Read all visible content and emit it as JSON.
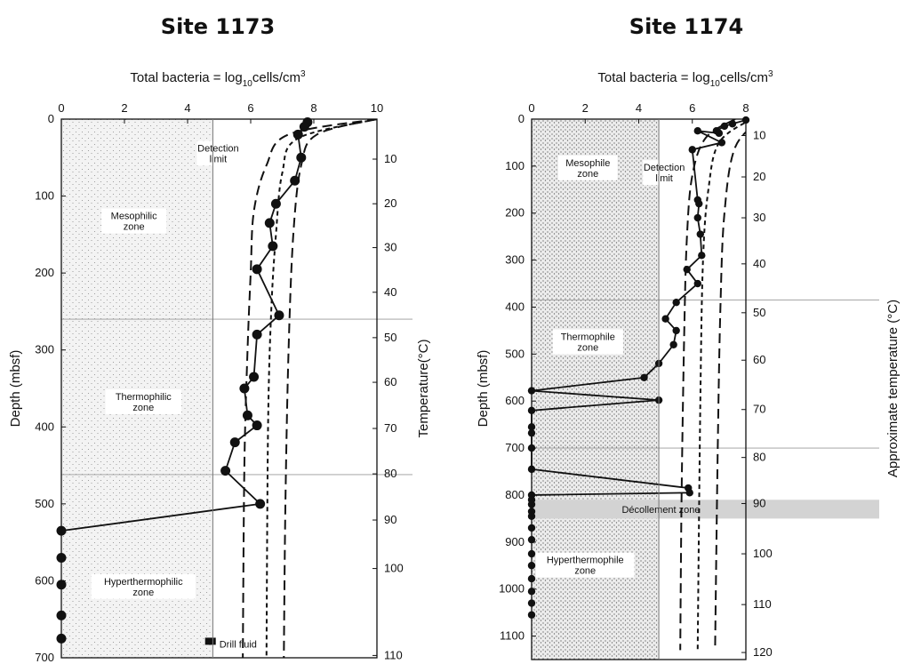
{
  "chart_data": [
    {
      "type": "scatter",
      "title": "Site 1173",
      "xlabel_parts": [
        "Total bacteria = log",
        "10",
        "cells/cm",
        "3"
      ],
      "ylabel": "Depth (mbsf)",
      "y2label": "Temperature(°C)",
      "xlim": [
        0,
        10
      ],
      "ylim": [
        0,
        700
      ],
      "x_ticks": [
        0,
        2,
        4,
        6,
        8,
        10
      ],
      "y_ticks": [
        0,
        100,
        200,
        300,
        400,
        500,
        600,
        700
      ],
      "temp_ticks": [
        {
          "label": "10",
          "depth": 52
        },
        {
          "label": "20",
          "depth": 110
        },
        {
          "label": "30",
          "depth": 167
        },
        {
          "label": "40",
          "depth": 225
        },
        {
          "label": "50",
          "depth": 284
        },
        {
          "label": "60",
          "depth": 342
        },
        {
          "label": "70",
          "depth": 402
        },
        {
          "label": "80",
          "depth": 461
        },
        {
          "label": "90",
          "depth": 521
        },
        {
          "label": "100",
          "depth": 584
        },
        {
          "label": "110",
          "depth": 697
        }
      ],
      "detection_limit": 4.8,
      "zone_boundaries": [
        260,
        462
      ],
      "zones": [
        {
          "name": "Mesophilic",
          "sub": "zone",
          "x": 2.3,
          "depth": 130
        },
        {
          "name": "Thermophilic",
          "sub": "zone",
          "x": 2.6,
          "depth": 365
        },
        {
          "name": "Hyperthermophilic",
          "sub": "zone",
          "x": 2.6,
          "depth": 605
        }
      ],
      "detection_label": {
        "line1": "Detection",
        "line2": "limit",
        "x": 4.8,
        "depth": 42
      },
      "bacteria": [
        {
          "x": 7.8,
          "y": 4
        },
        {
          "x": 7.7,
          "y": 10
        },
        {
          "x": 7.5,
          "y": 20
        },
        {
          "x": 7.6,
          "y": 50
        },
        {
          "x": 7.4,
          "y": 80
        },
        {
          "x": 6.8,
          "y": 110
        },
        {
          "x": 6.6,
          "y": 135
        },
        {
          "x": 6.7,
          "y": 165
        },
        {
          "x": 6.2,
          "y": 195
        },
        {
          "x": 6.9,
          "y": 255
        },
        {
          "x": 6.2,
          "y": 280
        },
        {
          "x": 6.1,
          "y": 335
        },
        {
          "x": 5.8,
          "y": 350
        },
        {
          "x": 5.9,
          "y": 385
        },
        {
          "x": 6.2,
          "y": 398
        },
        {
          "x": 5.5,
          "y": 420
        },
        {
          "x": 5.2,
          "y": 457
        },
        {
          "x": 6.3,
          "y": 500
        },
        {
          "x": 0.0,
          "y": 535
        }
      ],
      "zero_points": [
        570,
        605,
        645,
        675
      ],
      "model_curves": [
        {
          "dash": "11 6",
          "points": [
            [
              10,
              0
            ],
            [
              7.2,
              20
            ],
            [
              6.5,
              60
            ],
            [
              6.1,
              120
            ],
            [
              6.0,
              200
            ],
            [
              5.9,
              300
            ],
            [
              5.8,
              450
            ],
            [
              5.75,
              700
            ]
          ]
        },
        {
          "dash": "5 4",
          "points": [
            [
              10,
              0
            ],
            [
              7.5,
              25
            ],
            [
              7.0,
              70
            ],
            [
              6.8,
              150
            ],
            [
              6.65,
              250
            ],
            [
              6.55,
              400
            ],
            [
              6.5,
              700
            ]
          ]
        },
        {
          "dash": "11 6",
          "points": [
            [
              10,
              0
            ],
            [
              8.1,
              20
            ],
            [
              7.6,
              60
            ],
            [
              7.35,
              150
            ],
            [
              7.2,
              300
            ],
            [
              7.1,
              500
            ],
            [
              7.05,
              700
            ]
          ]
        }
      ],
      "drill_fluid": {
        "label": "Drill fluid",
        "x": 4.95,
        "depth": 682
      }
    },
    {
      "type": "scatter",
      "title": "Site 1174",
      "xlabel_parts": [
        "Total bacteria = log",
        "10",
        "cells/cm",
        "3"
      ],
      "ylabel": "Depth (mbsf)",
      "y2label": "Approximate temperature (°C)",
      "xlim": [
        0,
        8
      ],
      "ylim": [
        0,
        1150
      ],
      "x_ticks": [
        0,
        2,
        4,
        6,
        8
      ],
      "y_ticks": [
        0,
        100,
        200,
        300,
        400,
        500,
        600,
        700,
        800,
        900,
        1000,
        1100
      ],
      "temp_ticks": [
        {
          "label": "10",
          "depth": 35
        },
        {
          "label": "20",
          "depth": 123
        },
        {
          "label": "30",
          "depth": 210
        },
        {
          "label": "40",
          "depth": 308
        },
        {
          "label": "50",
          "depth": 412
        },
        {
          "label": "60",
          "depth": 513
        },
        {
          "label": "70",
          "depth": 618
        },
        {
          "label": "80",
          "depth": 720
        },
        {
          "label": "90",
          "depth": 818
        },
        {
          "label": "100",
          "depth": 925
        },
        {
          "label": "110",
          "depth": 1033
        },
        {
          "label": "120",
          "depth": 1135
        }
      ],
      "detection_limit": 4.75,
      "zone_boundaries": [
        385,
        700
      ],
      "decollement": {
        "label": "Décollement zone",
        "from": 810,
        "to": 850
      },
      "zones": [
        {
          "name": "Mesophile",
          "sub": "zone",
          "x": 2.1,
          "depth": 100
        },
        {
          "name": "Thermophile",
          "sub": "zone",
          "x": 2.1,
          "depth": 470
        },
        {
          "name": "Hyperthermophile",
          "sub": "zone",
          "x": 2.0,
          "depth": 945
        }
      ],
      "detection_label": {
        "line1": "Detection",
        "line2": "limit",
        "x": 4.75,
        "depth": 110
      },
      "bacteria": [
        {
          "x": 8.0,
          "y": 2
        },
        {
          "x": 7.5,
          "y": 10
        },
        {
          "x": 7.2,
          "y": 15
        },
        {
          "x": 6.9,
          "y": 25
        },
        {
          "x": 7.0,
          "y": 30
        },
        {
          "x": 6.2,
          "y": 25
        },
        {
          "x": 7.1,
          "y": 50
        },
        {
          "x": 6.0,
          "y": 65
        },
        {
          "x": 6.2,
          "y": 172
        },
        {
          "x": 6.25,
          "y": 180
        },
        {
          "x": 6.2,
          "y": 210
        },
        {
          "x": 6.3,
          "y": 245
        },
        {
          "x": 6.35,
          "y": 290
        },
        {
          "x": 5.8,
          "y": 320
        },
        {
          "x": 6.2,
          "y": 350
        },
        {
          "x": 5.4,
          "y": 390
        },
        {
          "x": 5.0,
          "y": 425
        },
        {
          "x": 5.4,
          "y": 450
        },
        {
          "x": 5.3,
          "y": 480
        },
        {
          "x": 4.75,
          "y": 520
        },
        {
          "x": 4.2,
          "y": 550
        },
        {
          "x": 0.0,
          "y": 578
        },
        {
          "x": 4.75,
          "y": 598
        },
        {
          "x": 0.0,
          "y": 620
        },
        {
          "x": 0.0,
          "y": 655
        },
        {
          "x": 0.0,
          "y": 668
        },
        {
          "x": 0.0,
          "y": 700
        },
        {
          "x": 0.0,
          "y": 745
        },
        {
          "x": 5.85,
          "y": 785
        },
        {
          "x": 5.9,
          "y": 795
        },
        {
          "x": 0.0,
          "y": 800
        }
      ],
      "zero_points": [
        810,
        820,
        835,
        845,
        870,
        895,
        925,
        950,
        978,
        1005,
        1030,
        1055
      ],
      "model_curves": [
        {
          "dash": "11 6",
          "points": [
            [
              7.6,
              0
            ],
            [
              6.5,
              40
            ],
            [
              6.0,
              120
            ],
            [
              5.8,
              250
            ],
            [
              5.7,
              450
            ],
            [
              5.6,
              800
            ],
            [
              5.55,
              1130
            ]
          ]
        },
        {
          "dash": "5 4",
          "points": [
            [
              8.2,
              0
            ],
            [
              7.0,
              50
            ],
            [
              6.6,
              150
            ],
            [
              6.4,
              300
            ],
            [
              6.3,
              600
            ],
            [
              6.2,
              1130
            ]
          ]
        },
        {
          "dash": "11 6",
          "points": [
            [
              8.6,
              0
            ],
            [
              7.6,
              60
            ],
            [
              7.2,
              200
            ],
            [
              7.05,
              400
            ],
            [
              6.95,
              700
            ],
            [
              6.85,
              1130
            ]
          ]
        }
      ]
    }
  ]
}
